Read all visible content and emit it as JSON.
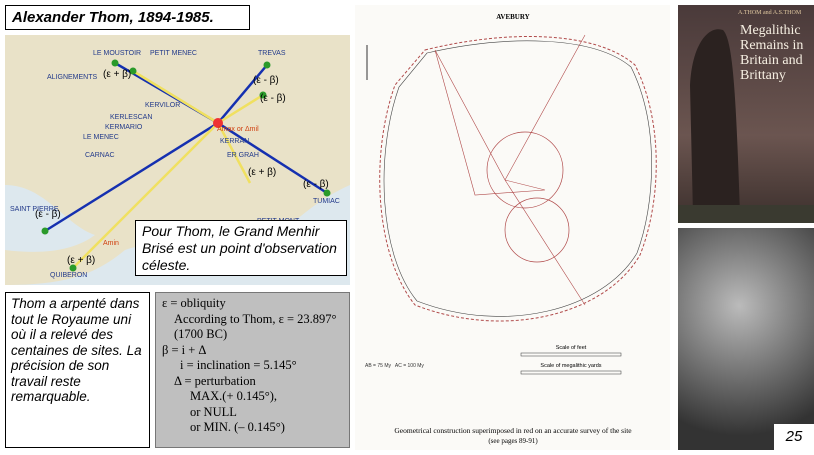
{
  "title": "Alexander Thom, 1894-1985.",
  "map": {
    "labels": [
      "LE MOUSTOIR",
      "PETIT MENEC",
      "TREVAS",
      "ALIGNEMENTS",
      "KERVILOR",
      "KERLESCAN",
      "KERMARIO",
      "LE MENEC",
      "CARNAC",
      "KERRAN",
      "ER GRAH",
      "TUMIAC",
      "PETIT MONT",
      "SAINT PIERRE",
      "QUIBERON",
      "Amax or Δmil",
      "Amin"
    ],
    "eb": [
      "(ε + β)",
      "(ε - β)",
      "(ε - β)",
      "(ε + β)",
      "(ε - β)",
      "(ε - β)",
      "(ε + β)"
    ]
  },
  "callout": "Pour Thom, le Grand Menhir Brisé est un point d'observation céleste.",
  "left_text": "Thom a arpenté dans tout le Royaume uni où il a relevé des centaines de sites. La précision de son travail reste remarquable.",
  "formula": [
    "ε = obliquity",
    "According to Thom, ε = 23.897°",
    "(1700 BC)",
    "β =  i + Δ",
    "i = inclination = 5.145°",
    "Δ = perturbation",
    "MAX.(+ 0.145°),",
    "or NULL",
    "or MIN. (– 0.145°)"
  ],
  "avebury": {
    "title": "AVEBURY",
    "scale1": "Scale of feet",
    "scale2": "Scale of megalithic yards",
    "caption": "Geometrical construction superimposed in red on an accurate survey of the site",
    "caption2": "(see pages 89-91)"
  },
  "book": {
    "authors": "A.THOM and A.S.THOM",
    "title": "Megalithic Remains in Britain and Brittany"
  },
  "page": "25"
}
